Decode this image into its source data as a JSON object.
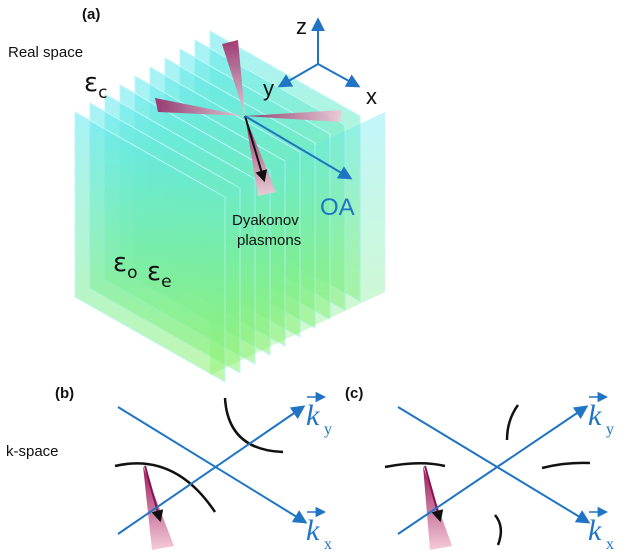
{
  "panel_a": {
    "label": "(a)",
    "space_label": "Real space",
    "axes": {
      "z": "z",
      "y": "y",
      "x": "x"
    },
    "epsilon_c": {
      "symbol": "ε",
      "subscript": "c"
    },
    "epsilon_o": {
      "symbol": "ε",
      "subscript": "o"
    },
    "epsilon_e": {
      "symbol": "ε",
      "subscript": "e"
    },
    "annotation": [
      "Dyakonov",
      "plasmons"
    ],
    "optic_axis": "OA"
  },
  "panel_b": {
    "label": "(b)",
    "space_label": "k-space",
    "ky": {
      "symbol": "k",
      "subscript": "y"
    },
    "kx": {
      "symbol": "k",
      "subscript": "x"
    }
  },
  "panel_c": {
    "label": "(c)",
    "ky": {
      "symbol": "k",
      "subscript": "y"
    },
    "kx": {
      "symbol": "k",
      "subscript": "x"
    }
  }
}
